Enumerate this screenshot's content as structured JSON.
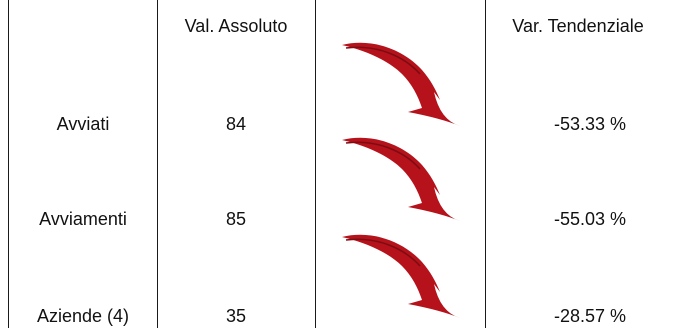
{
  "table": {
    "headers": {
      "col1": "",
      "col2": "Val. Assoluto",
      "col3": "",
      "col4": "Var. Tendenziale"
    },
    "rows": [
      {
        "label": "Avviati",
        "value": "84",
        "trend_icon": "red-down-arrow-icon",
        "change": "-53.33 %"
      },
      {
        "label": "Avviamenti",
        "value": "85",
        "trend_icon": "red-down-arrow-icon",
        "change": "-55.03 %"
      },
      {
        "label": "Aziende (4)",
        "value": "35",
        "trend_icon": "red-down-arrow-icon",
        "change": "-28.57 %"
      }
    ]
  },
  "colors": {
    "arrow": "#b5121b",
    "grid": "#1a1a1a",
    "text": "#111111"
  }
}
